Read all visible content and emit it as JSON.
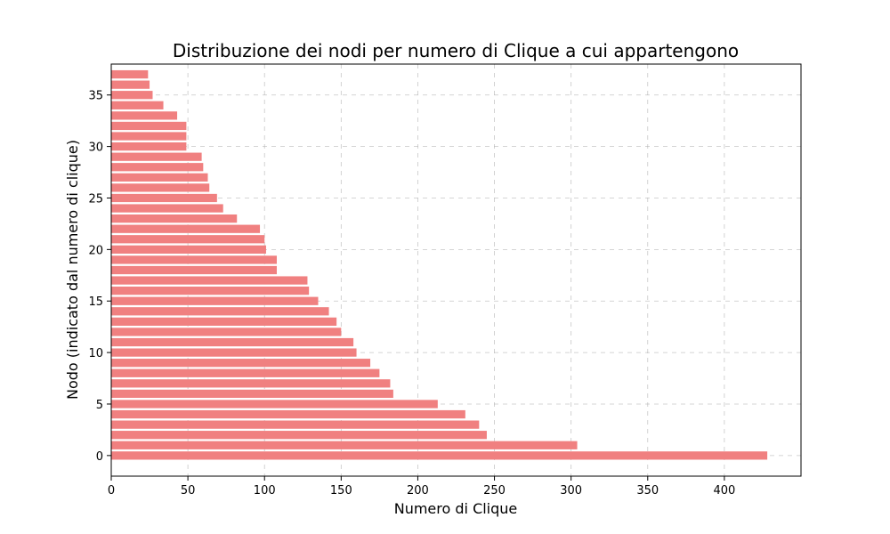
{
  "chart_data": {
    "type": "bar",
    "orientation": "horizontal",
    "title": "Distribuzione dei nodi per numero di Clique a cui appartengono",
    "xlabel": "Numero di Clique",
    "ylabel": "Nodo (indicato dal numero di clique)",
    "bar_color": "#f08080",
    "grid": true,
    "xlim": [
      0,
      450
    ],
    "ylim": [
      -2,
      38
    ],
    "xticks": [
      0,
      50,
      100,
      150,
      200,
      250,
      300,
      350,
      400
    ],
    "yticks": [
      0,
      5,
      10,
      15,
      20,
      25,
      30,
      35
    ],
    "categories": [
      0,
      1,
      2,
      3,
      4,
      5,
      6,
      7,
      8,
      9,
      10,
      11,
      12,
      13,
      14,
      15,
      16,
      17,
      18,
      19,
      20,
      21,
      22,
      23,
      24,
      25,
      26,
      27,
      28,
      29,
      30,
      31,
      32,
      33,
      34,
      35,
      36,
      37
    ],
    "values": [
      428,
      304,
      245,
      240,
      231,
      213,
      184,
      182,
      175,
      169,
      160,
      158,
      150,
      147,
      142,
      135,
      129,
      128,
      108,
      108,
      101,
      100,
      97,
      82,
      73,
      69,
      64,
      63,
      60,
      59,
      49,
      49,
      49,
      43,
      34,
      27,
      25,
      24
    ]
  }
}
